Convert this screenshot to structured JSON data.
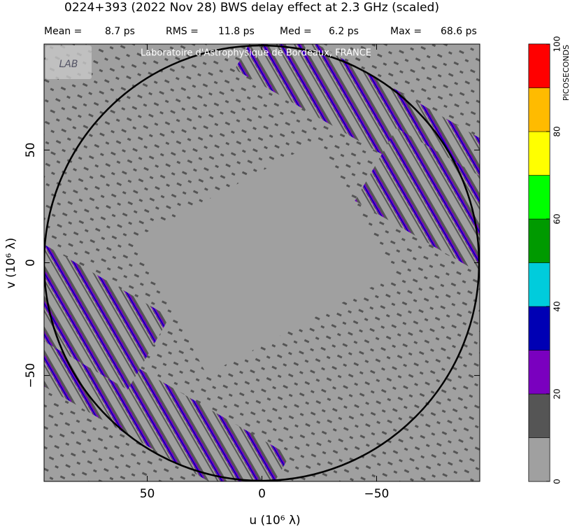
{
  "chart_data": {
    "type": "delay-map",
    "title": "0224+393  (2022 Nov 28)   BWS delay effect at  2.3 GHz (scaled)",
    "stats": [
      {
        "label": "Mean =",
        "value": "8.7 ps"
      },
      {
        "label": "RMS =",
        "value": "11.8 ps"
      },
      {
        "label": "Med =",
        "value": "6.2 ps"
      },
      {
        "label": "Max =",
        "value": "68.6 ps"
      }
    ],
    "watermark": "Laboratoire d'Astrophysique de Bordeaux, FRANCE",
    "logo": "LAB",
    "xlabel": "u  (10⁶ λ)",
    "ylabel": "v  (10⁶ λ)",
    "xlim": [
      95,
      -95
    ],
    "ylim": [
      -97,
      97
    ],
    "xticks": [
      50,
      0,
      {
        "value": -50,
        "label": "−50"
      }
    ],
    "yticks": [
      {
        "value": -50,
        "label": "−50"
      },
      0,
      50
    ],
    "colorbar": {
      "label": "PICOSECONDS",
      "lim": [
        0,
        100
      ],
      "ticks": [
        0,
        20,
        40,
        60,
        80,
        100
      ],
      "levels": [
        0,
        10,
        20,
        30,
        40,
        50,
        60,
        70,
        80,
        90,
        100
      ],
      "colors": [
        "#a0a0a0",
        "#555555",
        "#7a00bf",
        "#0000b4",
        "#00ccdc",
        "#009a00",
        "#00ff00",
        "#ffff00",
        "#ffbb00",
        "#ff0000"
      ]
    }
  }
}
